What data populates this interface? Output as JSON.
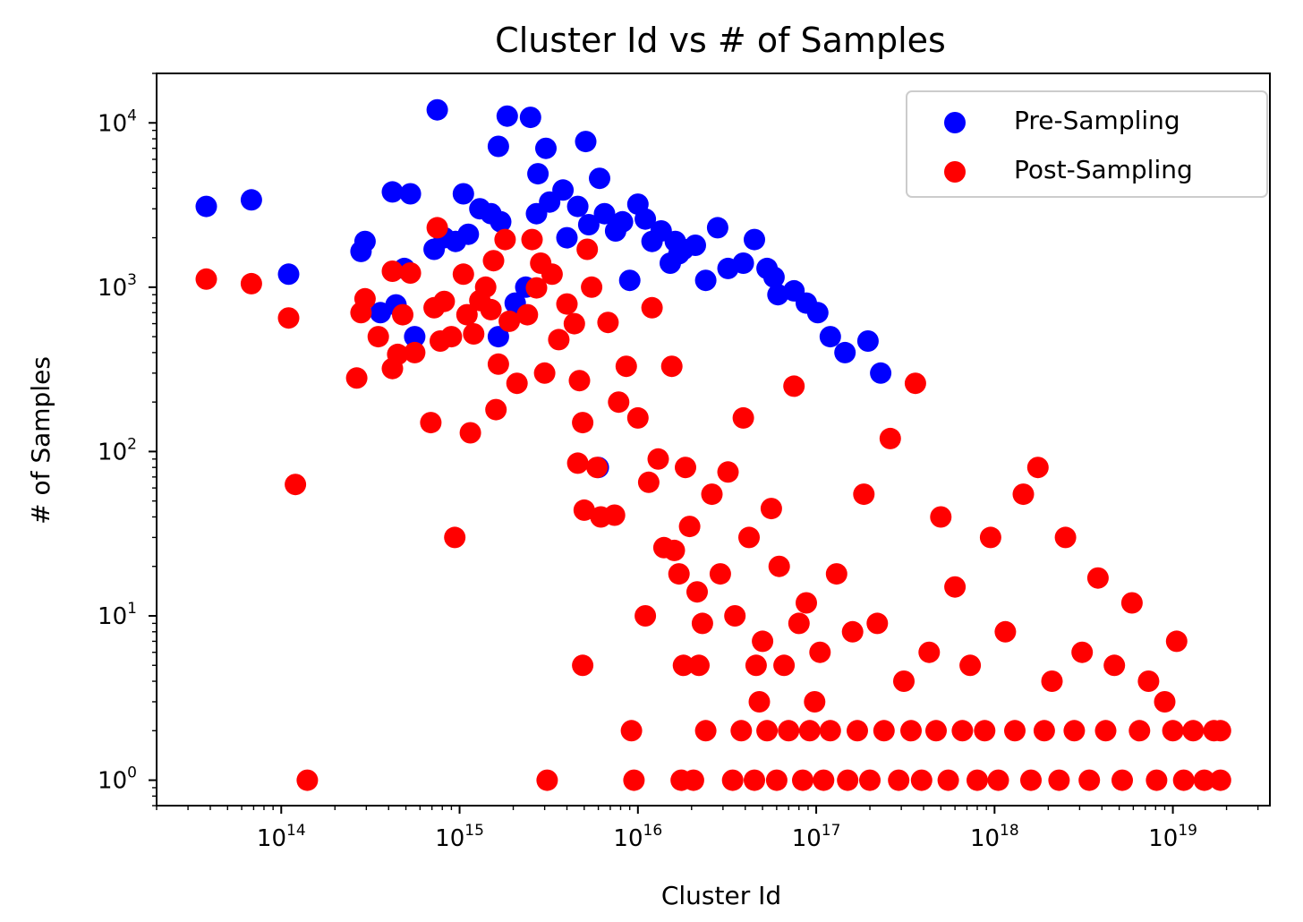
{
  "chart_data": {
    "type": "scatter",
    "title": "Cluster Id vs # of Samples",
    "xlabel": "Cluster Id",
    "ylabel": "# of Samples",
    "xscale": "log",
    "yscale": "log",
    "xlim": [
      20000000000000.0,
      3.5e+19
    ],
    "ylim": [
      0.7,
      20000
    ],
    "x_major_tick_exponents": [
      14,
      15,
      16,
      17,
      18,
      19
    ],
    "y_major_tick_exponents": [
      0,
      1,
      2,
      3,
      4
    ],
    "tick_base": "10",
    "grid": false,
    "legend_position": "upper right",
    "series": [
      {
        "name": "Pre-Sampling",
        "color": "#0000ff",
        "points": [
          [
            38000000000000.0,
            3100
          ],
          [
            68000000000000.0,
            3400
          ],
          [
            110000000000000.0,
            1200
          ],
          [
            280000000000000.0,
            1650
          ],
          [
            295000000000000.0,
            1900
          ],
          [
            360000000000000.0,
            700
          ],
          [
            420000000000000.0,
            3800
          ],
          [
            530000000000000.0,
            3700
          ],
          [
            440000000000000.0,
            780
          ],
          [
            490000000000000.0,
            1300
          ],
          [
            560000000000000.0,
            500
          ],
          [
            750000000000000.0,
            12000
          ],
          [
            720000000000000.0,
            1700
          ],
          [
            820000000000000.0,
            2000
          ],
          [
            950000000000000.0,
            1900
          ],
          [
            1050000000000000.0,
            3700
          ],
          [
            1120000000000000.0,
            2100
          ],
          [
            1300000000000000.0,
            3000
          ],
          [
            1500000000000000.0,
            2800
          ],
          [
            1650000000000000.0,
            7200
          ],
          [
            1850000000000000.0,
            11000
          ],
          [
            1700000000000000.0,
            2500
          ],
          [
            2500000000000000.0,
            10800
          ],
          [
            2750000000000000.0,
            4900
          ],
          [
            2700000000000000.0,
            2800
          ],
          [
            3050000000000000.0,
            7000
          ],
          [
            3200000000000000.0,
            3300
          ],
          [
            3800000000000000.0,
            3900
          ],
          [
            4600000000000000.0,
            3100
          ],
          [
            5100000000000000.0,
            7700
          ],
          [
            6100000000000000.0,
            4600
          ],
          [
            5300000000000000.0,
            2400
          ],
          [
            6500000000000000.0,
            2800
          ],
          [
            4000000000000000.0,
            2000
          ],
          [
            2050000000000000.0,
            800
          ],
          [
            1650000000000000.0,
            500
          ],
          [
            2350000000000000.0,
            1000
          ],
          [
            7500000000000000.0,
            2200
          ],
          [
            8200000000000000.0,
            2500
          ],
          [
            1e+16,
            3200
          ],
          [
            1.1e+16,
            2600
          ],
          [
            1.2e+16,
            1900
          ],
          [
            1.35e+16,
            2200
          ],
          [
            1.52e+16,
            1400
          ],
          [
            1.62e+16,
            1900
          ],
          [
            1.8e+16,
            1700
          ],
          [
            2.1e+16,
            1800
          ],
          [
            2.8e+16,
            2300
          ],
          [
            2.4e+16,
            1100
          ],
          [
            3.2e+16,
            1300
          ],
          [
            3.9e+16,
            1400
          ],
          [
            4.5e+16,
            1950
          ],
          [
            5.3e+16,
            1300
          ],
          [
            6.1e+16,
            900
          ],
          [
            7.5e+16,
            950
          ],
          [
            8.8e+16,
            800
          ],
          [
            1.02e+17,
            700
          ],
          [
            1.2e+17,
            500
          ],
          [
            1.45e+17,
            400
          ],
          [
            1.95e+17,
            470
          ],
          [
            2.3e+17,
            300
          ],
          [
            6000000000000000.0,
            80
          ],
          [
            9000000000000000.0,
            1100
          ],
          [
            5.8e+16,
            1150
          ],
          [
            1.7e+16,
            1600
          ]
        ]
      },
      {
        "name": "Post-Sampling",
        "color": "#ff0000",
        "points": [
          [
            38000000000000.0,
            1120
          ],
          [
            68000000000000.0,
            1050
          ],
          [
            110000000000000.0,
            650
          ],
          [
            120000000000000.0,
            63
          ],
          [
            140000000000000.0,
            1
          ],
          [
            265000000000000.0,
            280
          ],
          [
            280000000000000.0,
            700
          ],
          [
            295000000000000.0,
            850
          ],
          [
            350000000000000.0,
            500
          ],
          [
            420000000000000.0,
            1250
          ],
          [
            420000000000000.0,
            320
          ],
          [
            450000000000000.0,
            390
          ],
          [
            480000000000000.0,
            680
          ],
          [
            530000000000000.0,
            1220
          ],
          [
            560000000000000.0,
            400
          ],
          [
            690000000000000.0,
            150
          ],
          [
            720000000000000.0,
            750
          ],
          [
            750000000000000.0,
            2300
          ],
          [
            780000000000000.0,
            470
          ],
          [
            820000000000000.0,
            820
          ],
          [
            900000000000000.0,
            500
          ],
          [
            940000000000000.0,
            30
          ],
          [
            1050000000000000.0,
            1200
          ],
          [
            1100000000000000.0,
            680
          ],
          [
            1150000000000000.0,
            130
          ],
          [
            1200000000000000.0,
            520
          ],
          [
            1300000000000000.0,
            830
          ],
          [
            1400000000000000.0,
            1000
          ],
          [
            1500000000000000.0,
            730
          ],
          [
            1550000000000000.0,
            1450
          ],
          [
            1600000000000000.0,
            180
          ],
          [
            1650000000000000.0,
            340
          ],
          [
            1800000000000000.0,
            1950
          ],
          [
            1900000000000000.0,
            620
          ],
          [
            2100000000000000.0,
            260
          ],
          [
            2400000000000000.0,
            680
          ],
          [
            2550000000000000.0,
            1950
          ],
          [
            2700000000000000.0,
            990
          ],
          [
            2850000000000000.0,
            1400
          ],
          [
            3000000000000000.0,
            300
          ],
          [
            3100000000000000.0,
            1
          ],
          [
            3300000000000000.0,
            1200
          ],
          [
            3600000000000000.0,
            480
          ],
          [
            4000000000000000.0,
            790
          ],
          [
            4400000000000000.0,
            600
          ],
          [
            4600000000000000.0,
            85
          ],
          [
            4700000000000000.0,
            270
          ],
          [
            4900000000000000.0,
            150
          ],
          [
            4900000000000000.0,
            5
          ],
          [
            5000000000000000.0,
            44
          ],
          [
            5200000000000000.0,
            1700
          ],
          [
            5500000000000000.0,
            1000
          ],
          [
            5900000000000000.0,
            80
          ],
          [
            6200000000000000.0,
            40
          ],
          [
            6800000000000000.0,
            610
          ],
          [
            7400000000000000.0,
            41
          ],
          [
            7800000000000000.0,
            200
          ],
          [
            8600000000000000.0,
            330
          ],
          [
            9200000000000000.0,
            2
          ],
          [
            9500000000000000.0,
            1
          ],
          [
            1e+16,
            160
          ],
          [
            1.1e+16,
            10
          ],
          [
            1.15e+16,
            65
          ],
          [
            1.2e+16,
            750
          ],
          [
            1.3e+16,
            90
          ],
          [
            1.4e+16,
            26
          ],
          [
            1.55e+16,
            330
          ],
          [
            1.6e+16,
            25
          ],
          [
            1.7e+16,
            18
          ],
          [
            1.75e+16,
            1
          ],
          [
            1.8e+16,
            5
          ],
          [
            1.85e+16,
            80
          ],
          [
            1.95e+16,
            35
          ],
          [
            2.05e+16,
            1
          ],
          [
            2.15e+16,
            14
          ],
          [
            2.2e+16,
            5
          ],
          [
            2.3e+16,
            9
          ],
          [
            2.4e+16,
            2
          ],
          [
            2.6e+16,
            55
          ],
          [
            2.9e+16,
            18
          ],
          [
            3.2e+16,
            75
          ],
          [
            3.4e+16,
            1
          ],
          [
            3.5e+16,
            10
          ],
          [
            3.8e+16,
            2
          ],
          [
            3.9e+16,
            160
          ],
          [
            4.2e+16,
            30
          ],
          [
            4.5e+16,
            1
          ],
          [
            4.6e+16,
            5
          ],
          [
            4.8e+16,
            3
          ],
          [
            5e+16,
            7
          ],
          [
            5.3e+16,
            2
          ],
          [
            5.6e+16,
            45
          ],
          [
            6e+16,
            1
          ],
          [
            6.2e+16,
            20
          ],
          [
            6.6e+16,
            5
          ],
          [
            7e+16,
            2
          ],
          [
            7.5e+16,
            250
          ],
          [
            8e+16,
            9
          ],
          [
            8.4e+16,
            1
          ],
          [
            8.8e+16,
            12
          ],
          [
            9.2e+16,
            2
          ],
          [
            9.8e+16,
            3
          ],
          [
            1.05e+17,
            6
          ],
          [
            1.1e+17,
            1
          ],
          [
            1.2e+17,
            2
          ],
          [
            1.3e+17,
            18
          ],
          [
            1.5e+17,
            1
          ],
          [
            1.6e+17,
            8
          ],
          [
            1.7e+17,
            2
          ],
          [
            1.85e+17,
            55
          ],
          [
            2e+17,
            1
          ],
          [
            2.2e+17,
            9
          ],
          [
            2.4e+17,
            2
          ],
          [
            2.6e+17,
            120
          ],
          [
            2.9e+17,
            1
          ],
          [
            3.1e+17,
            4
          ],
          [
            3.4e+17,
            2
          ],
          [
            3.6e+17,
            260
          ],
          [
            3.9e+17,
            1
          ],
          [
            4.3e+17,
            6
          ],
          [
            4.7e+17,
            2
          ],
          [
            5e+17,
            40
          ],
          [
            5.5e+17,
            1
          ],
          [
            6e+17,
            15
          ],
          [
            6.6e+17,
            2
          ],
          [
            7.3e+17,
            5
          ],
          [
            8e+17,
            1
          ],
          [
            8.8e+17,
            2
          ],
          [
            9.5e+17,
            30
          ],
          [
            1.05e+18,
            1
          ],
          [
            1.15e+18,
            8
          ],
          [
            1.3e+18,
            2
          ],
          [
            1.45e+18,
            55
          ],
          [
            1.6e+18,
            1
          ],
          [
            1.75e+18,
            80
          ],
          [
            1.9e+18,
            2
          ],
          [
            2.1e+18,
            4
          ],
          [
            2.3e+18,
            1
          ],
          [
            2.5e+18,
            30
          ],
          [
            2.8e+18,
            2
          ],
          [
            3.1e+18,
            6
          ],
          [
            3.4e+18,
            1
          ],
          [
            3.8e+18,
            17
          ],
          [
            4.2e+18,
            2
          ],
          [
            4.7e+18,
            5
          ],
          [
            5.2e+18,
            1
          ],
          [
            5.9e+18,
            12
          ],
          [
            6.5e+18,
            2
          ],
          [
            7.3e+18,
            4
          ],
          [
            8.1e+18,
            1
          ],
          [
            9e+18,
            3
          ],
          [
            1e+19,
            2
          ],
          [
            1.05e+19,
            7
          ],
          [
            1.15e+19,
            1
          ],
          [
            1.3e+19,
            2
          ],
          [
            1.5e+19,
            1
          ],
          [
            1.7e+19,
            2
          ],
          [
            1.85e+19,
            1
          ],
          [
            1.85e+19,
            2
          ]
        ]
      }
    ]
  }
}
